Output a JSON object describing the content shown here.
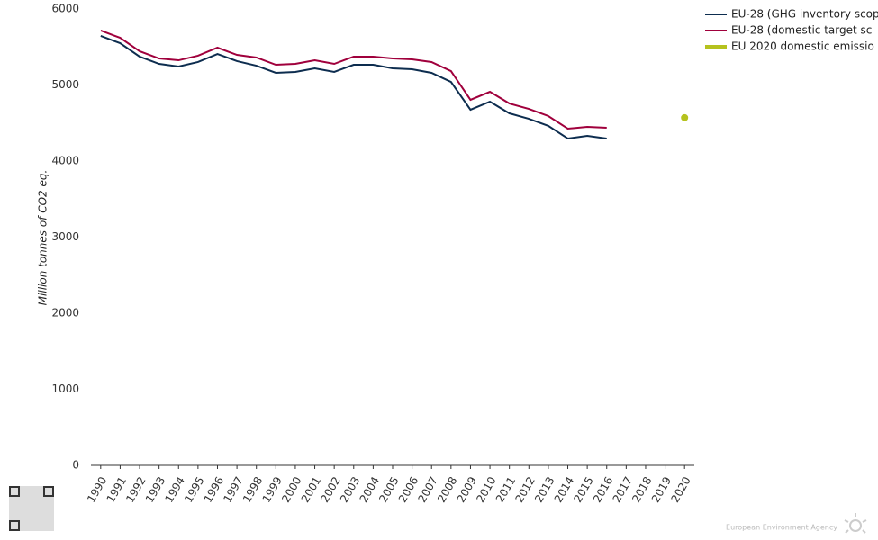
{
  "chart_data": {
    "type": "line",
    "y_axis_label": "Million tonnes of CO2 eq.",
    "categories": [
      "1990",
      "1991",
      "1992",
      "1993",
      "1994",
      "1995",
      "1996",
      "1997",
      "1998",
      "1999",
      "2000",
      "2001",
      "2002",
      "2003",
      "2004",
      "2005",
      "2006",
      "2007",
      "2008",
      "2009",
      "2010",
      "2011",
      "2012",
      "2013",
      "2014",
      "2015",
      "2016",
      "2017",
      "2018",
      "2019",
      "2020"
    ],
    "series": [
      {
        "name": "EU-28 (GHG inventory scop",
        "color": "#0d2d4f",
        "values": [
          5645,
          5550,
          5373,
          5278,
          5243,
          5302,
          5408,
          5314,
          5254,
          5160,
          5172,
          5219,
          5172,
          5266,
          5266,
          5219,
          5207,
          5160,
          5041,
          4675,
          4781,
          4627,
          4556,
          4462,
          4296,
          4331,
          4296,
          null,
          null,
          null,
          null
        ]
      },
      {
        "name": "EU-28 (domestic target sc",
        "color": "#a0003c",
        "values": [
          5716,
          5621,
          5444,
          5349,
          5325,
          5385,
          5491,
          5396,
          5361,
          5266,
          5278,
          5325,
          5278,
          5373,
          5373,
          5349,
          5337,
          5302,
          5183,
          4805,
          4911,
          4757,
          4686,
          4592,
          4426,
          4450,
          4438,
          null,
          null,
          null,
          null
        ]
      },
      {
        "name": "EU 2020 domestic emissio",
        "color": "#b5c21e",
        "values": [
          null,
          null,
          null,
          null,
          null,
          null,
          null,
          null,
          null,
          null,
          null,
          null,
          null,
          null,
          null,
          null,
          null,
          null,
          null,
          null,
          null,
          null,
          null,
          null,
          null,
          null,
          null,
          null,
          null,
          null,
          4570
        ]
      }
    ],
    "ylim": [
      0,
      6000
    ],
    "yticks": [
      0,
      1000,
      2000,
      3000,
      4000,
      5000,
      6000
    ],
    "grid": false,
    "legend": "top-right",
    "footer": "European Environment Agency"
  }
}
